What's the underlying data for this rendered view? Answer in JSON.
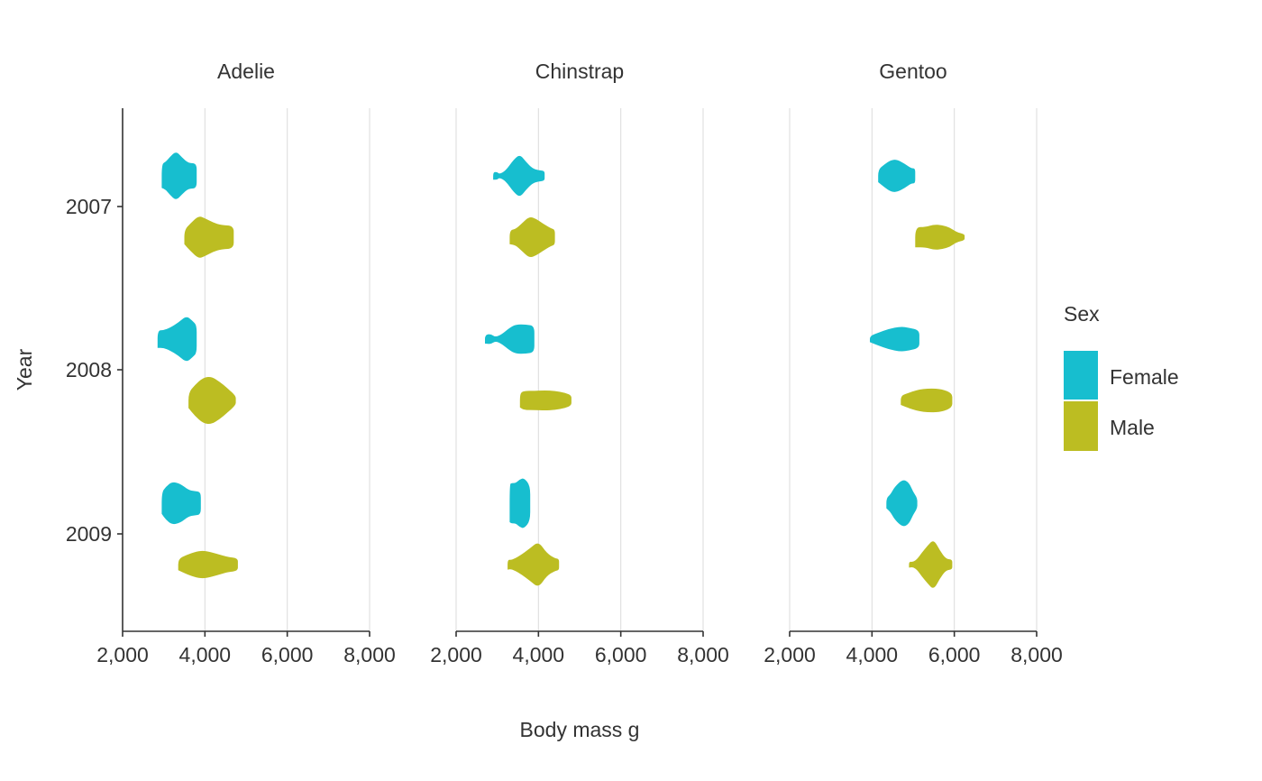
{
  "chart_data": {
    "type": "violin",
    "xlabel": "Body mass g",
    "ylabel": "Year",
    "xlim": [
      2000,
      8000
    ],
    "x_ticks": [
      2000,
      4000,
      6000,
      8000
    ],
    "x_tick_labels": [
      "2,000",
      "4,000",
      "6,000",
      "8,000"
    ],
    "y_categories": [
      "2007",
      "2008",
      "2009"
    ],
    "orientation": "horizontal",
    "grid": "vertical major gridlines",
    "legend": {
      "title": "Sex",
      "placement": "right",
      "entries": [
        {
          "label": "Female",
          "color": "#17BECF"
        },
        {
          "label": "Male",
          "color": "#BCBD22"
        }
      ]
    },
    "facets": [
      {
        "name": "Adelie",
        "violins": [
          {
            "year": "2007",
            "sex": "Female",
            "profile": [
              [
                2950,
                0.48
              ],
              [
                3050,
                0.55
              ],
              [
                3150,
                0.75
              ],
              [
                3300,
                0.98
              ],
              [
                3450,
                0.72
              ],
              [
                3600,
                0.5
              ],
              [
                3800,
                0.5
              ],
              [
                3800,
                0
              ]
            ]
          },
          {
            "year": "2007",
            "sex": "Male",
            "profile": [
              [
                3500,
                0.28
              ],
              [
                3650,
                0.55
              ],
              [
                3850,
                0.85
              ],
              [
                4000,
                0.75
              ],
              [
                4200,
                0.58
              ],
              [
                4400,
                0.48
              ],
              [
                4700,
                0.45
              ],
              [
                4700,
                0
              ]
            ]
          },
          {
            "year": "2008",
            "sex": "Female",
            "profile": [
              [
                2850,
                0.35
              ],
              [
                3000,
                0.35
              ],
              [
                3150,
                0.45
              ],
              [
                3350,
                0.65
              ],
              [
                3550,
                0.92
              ],
              [
                3700,
                0.72
              ],
              [
                3800,
                0.55
              ],
              [
                3800,
                0
              ]
            ]
          },
          {
            "year": "2008",
            "sex": "Male",
            "profile": [
              [
                3600,
                0.3
              ],
              [
                3750,
                0.6
              ],
              [
                3950,
                0.9
              ],
              [
                4150,
                0.95
              ],
              [
                4350,
                0.75
              ],
              [
                4550,
                0.48
              ],
              [
                4750,
                0.18
              ],
              [
                4750,
                0
              ]
            ]
          },
          {
            "year": "2009",
            "sex": "Female",
            "profile": [
              [
                2950,
                0.42
              ],
              [
                3050,
                0.65
              ],
              [
                3200,
                0.85
              ],
              [
                3400,
                0.78
              ],
              [
                3600,
                0.52
              ],
              [
                3750,
                0.48
              ],
              [
                3900,
                0.45
              ],
              [
                3900,
                0
              ]
            ]
          },
          {
            "year": "2009",
            "sex": "Male",
            "profile": [
              [
                3350,
                0.22
              ],
              [
                3550,
                0.38
              ],
              [
                3800,
                0.52
              ],
              [
                4000,
                0.55
              ],
              [
                4300,
                0.42
              ],
              [
                4550,
                0.3
              ],
              [
                4800,
                0.25
              ],
              [
                4800,
                0
              ]
            ]
          }
        ]
      },
      {
        "name": "Chinstrap",
        "violins": [
          {
            "year": "2007",
            "sex": "Female",
            "profile": [
              [
                2900,
                0.15
              ],
              [
                3000,
                0.15
              ],
              [
                3050,
                0.07
              ],
              [
                3200,
                0.2
              ],
              [
                3400,
                0.65
              ],
              [
                3550,
                0.85
              ],
              [
                3700,
                0.55
              ],
              [
                3850,
                0.3
              ],
              [
                4000,
                0.22
              ],
              [
                4150,
                0.2
              ],
              [
                4150,
                0
              ]
            ]
          },
          {
            "year": "2007",
            "sex": "Male",
            "profile": [
              [
                3300,
                0.28
              ],
              [
                3450,
                0.32
              ],
              [
                3600,
                0.55
              ],
              [
                3780,
                0.82
              ],
              [
                3950,
                0.72
              ],
              [
                4100,
                0.55
              ],
              [
                4300,
                0.35
              ],
              [
                4400,
                0.3
              ],
              [
                4400,
                0
              ]
            ]
          },
          {
            "year": "2008",
            "sex": "Female",
            "profile": [
              [
                2700,
                0.18
              ],
              [
                2850,
                0.2
              ],
              [
                2950,
                0.08
              ],
              [
                3100,
                0.18
              ],
              [
                3300,
                0.45
              ],
              [
                3450,
                0.58
              ],
              [
                3700,
                0.58
              ],
              [
                3900,
                0.52
              ],
              [
                3900,
                0
              ]
            ]
          },
          {
            "year": "2008",
            "sex": "Male",
            "profile": [
              [
                3550,
                0.28
              ],
              [
                3650,
                0.38
              ],
              [
                3900,
                0.38
              ],
              [
                4150,
                0.4
              ],
              [
                4400,
                0.38
              ],
              [
                4650,
                0.3
              ],
              [
                4800,
                0.2
              ],
              [
                4800,
                0
              ]
            ]
          },
          {
            "year": "2009",
            "sex": "Female",
            "profile": [
              [
                3300,
                0.75
              ],
              [
                3350,
                0.8
              ],
              [
                3450,
                0.8
              ],
              [
                3550,
                0.95
              ],
              [
                3650,
                1.0
              ],
              [
                3800,
                0.7
              ],
              [
                3800,
                0
              ]
            ]
          },
          {
            "year": "2009",
            "sex": "Male",
            "profile": [
              [
                3250,
                0.2
              ],
              [
                3350,
                0.18
              ],
              [
                3550,
                0.35
              ],
              [
                3800,
                0.65
              ],
              [
                4000,
                0.92
              ],
              [
                4200,
                0.45
              ],
              [
                4400,
                0.25
              ],
              [
                4500,
                0.22
              ],
              [
                4500,
                0
              ]
            ]
          }
        ]
      },
      {
        "name": "Gentoo",
        "violins": [
          {
            "year": "2007",
            "sex": "Female",
            "profile": [
              [
                4150,
                0.25
              ],
              [
                4300,
                0.45
              ],
              [
                4450,
                0.62
              ],
              [
                4600,
                0.65
              ],
              [
                4800,
                0.48
              ],
              [
                4950,
                0.3
              ],
              [
                5050,
                0.3
              ],
              [
                5050,
                0
              ]
            ]
          },
          {
            "year": "2007",
            "sex": "Male",
            "profile": [
              [
                5050,
                0.4
              ],
              [
                5300,
                0.4
              ],
              [
                5500,
                0.5
              ],
              [
                5700,
                0.48
              ],
              [
                5900,
                0.38
              ],
              [
                6050,
                0.2
              ],
              [
                6250,
                0.12
              ],
              [
                6250,
                0
              ]
            ]
          },
          {
            "year": "2008",
            "sex": "Female",
            "profile": [
              [
                3950,
                0.12
              ],
              [
                4150,
                0.25
              ],
              [
                4400,
                0.4
              ],
              [
                4700,
                0.5
              ],
              [
                4900,
                0.45
              ],
              [
                5150,
                0.35
              ],
              [
                5150,
                0
              ]
            ]
          },
          {
            "year": "2008",
            "sex": "Male",
            "profile": [
              [
                4700,
                0.18
              ],
              [
                4850,
                0.28
              ],
              [
                5100,
                0.42
              ],
              [
                5400,
                0.48
              ],
              [
                5700,
                0.45
              ],
              [
                5950,
                0.28
              ],
              [
                5950,
                0
              ]
            ]
          },
          {
            "year": "2009",
            "sex": "Female",
            "profile": [
              [
                4350,
                0.2
              ],
              [
                4450,
                0.35
              ],
              [
                4550,
                0.65
              ],
              [
                4750,
                0.95
              ],
              [
                4900,
                0.82
              ],
              [
                5000,
                0.45
              ],
              [
                5100,
                0.2
              ],
              [
                5100,
                0
              ]
            ]
          },
          {
            "year": "2009",
            "sex": "Male",
            "profile": [
              [
                4900,
                0.12
              ],
              [
                5000,
                0.1
              ],
              [
                5100,
                0.22
              ],
              [
                5200,
                0.45
              ],
              [
                5350,
                0.75
              ],
              [
                5500,
                1.0
              ],
              [
                5650,
                0.55
              ],
              [
                5800,
                0.22
              ],
              [
                5950,
                0.2
              ],
              [
                5950,
                0
              ]
            ]
          }
        ]
      }
    ]
  }
}
